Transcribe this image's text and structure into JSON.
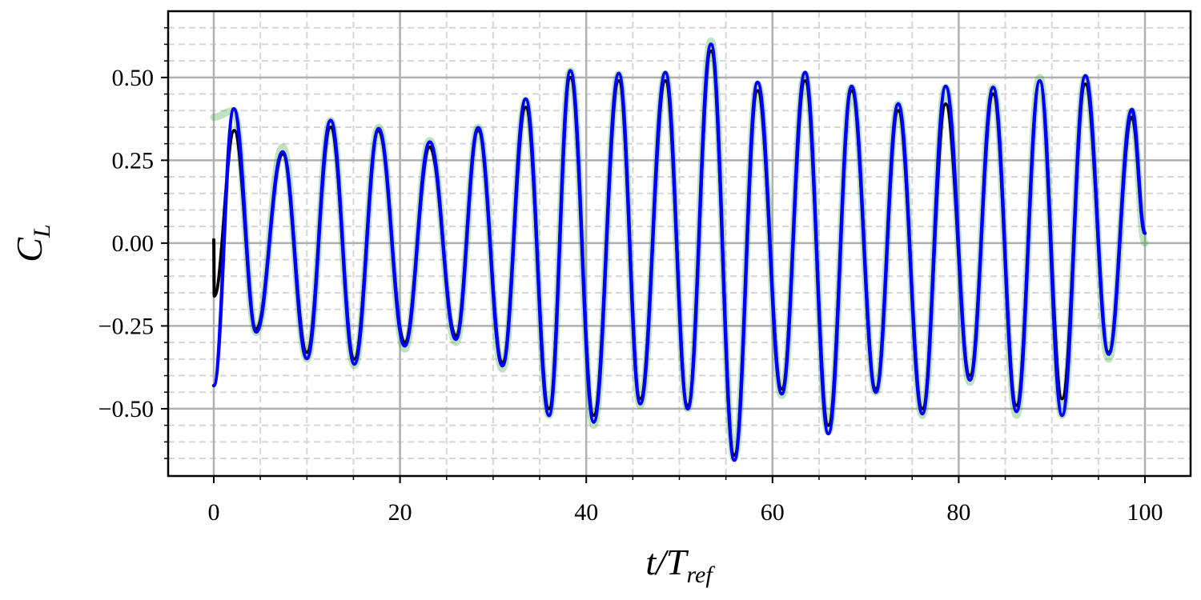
{
  "chart_data": {
    "type": "line",
    "ylabel": [
      "C",
      "L"
    ],
    "xlabel": [
      "t/T",
      "ref"
    ],
    "xlim": [
      -4.9,
      104.9
    ],
    "ylim": [
      -0.703,
      0.7
    ],
    "xticks": [
      0,
      20,
      40,
      60,
      80,
      100
    ],
    "yticks": [
      {
        "value": -0.5,
        "label": "−0.50"
      },
      {
        "value": -0.25,
        "label": "−0.25"
      },
      {
        "value": 0,
        "label": "0.00"
      },
      {
        "value": 0.25,
        "label": "0.25"
      },
      {
        "value": 0.5,
        "label": "0.50"
      }
    ],
    "xminorticks": [
      5,
      10,
      15,
      25,
      30,
      35,
      45,
      50,
      55,
      65,
      70,
      75,
      85,
      90,
      95
    ],
    "yminorticks": [
      -0.65,
      -0.6,
      -0.55,
      -0.45,
      -0.4,
      -0.35,
      -0.3,
      -0.2,
      -0.15,
      -0.1,
      -0.05,
      0.05,
      0.1,
      0.15,
      0.2,
      0.3,
      0.35,
      0.4,
      0.45,
      0.55,
      0.6,
      0.65
    ],
    "grid": true,
    "series": [
      {
        "color": "#2ca02c",
        "x": [
          0,
          2.15,
          4.56,
          7.4,
          10.0,
          12.55,
          15.1,
          17.7,
          20.5,
          23.2,
          26.0,
          28.4,
          31.0,
          33.5,
          36.0,
          38.3,
          40.8,
          43.5,
          45.8,
          48.5,
          50.9,
          53.4,
          55.9,
          58.4,
          61.0,
          63.5,
          66.0,
          68.5,
          71.1,
          73.5,
          76.1,
          78.6,
          81.2,
          83.7,
          86.2,
          88.7,
          91.1,
          93.6,
          96.1,
          98.6,
          100
        ],
        "values": [
          0.38,
          0.4,
          -0.27,
          0.29,
          -0.35,
          0.37,
          -0.37,
          0.35,
          -0.32,
          0.31,
          -0.3,
          0.35,
          -0.38,
          0.43,
          -0.52,
          0.52,
          -0.55,
          0.51,
          -0.49,
          0.51,
          -0.5,
          0.61,
          -0.65,
          0.48,
          -0.46,
          0.51,
          -0.57,
          0.47,
          -0.45,
          0.42,
          -0.52,
          0.47,
          -0.42,
          0.47,
          -0.52,
          0.5,
          -0.52,
          0.5,
          -0.35,
          0.4,
          0.0
        ]
      },
      {
        "color": "#000000",
        "x": [
          0,
          0.05,
          2.2,
          4.56,
          7.4,
          10.0,
          12.55,
          15.1,
          17.7,
          20.5,
          23.2,
          26.0,
          28.4,
          31.0,
          33.5,
          36.0,
          38.3,
          40.8,
          43.5,
          45.8,
          48.5,
          50.9,
          53.4,
          55.9,
          58.4,
          61.0,
          63.5,
          66.0,
          68.5,
          71.1,
          73.5,
          76.1,
          78.6,
          81.2,
          83.7,
          86.2,
          88.7,
          91.1,
          93.6,
          96.1,
          98.6,
          100
        ],
        "values": [
          0.01,
          -0.16,
          0.34,
          -0.26,
          0.27,
          -0.33,
          0.35,
          -0.35,
          0.34,
          -0.3,
          0.29,
          -0.28,
          0.34,
          -0.36,
          0.41,
          -0.5,
          0.5,
          -0.52,
          0.49,
          -0.47,
          0.49,
          -0.49,
          0.58,
          -0.64,
          0.46,
          -0.44,
          0.49,
          -0.55,
          0.46,
          -0.44,
          0.4,
          -0.5,
          0.42,
          -0.4,
          0.45,
          -0.49,
          0.49,
          -0.47,
          0.48,
          -0.33,
          0.38,
          0.03
        ]
      },
      {
        "color": "#0000ff",
        "x": [
          0,
          2.15,
          4.56,
          7.4,
          10.0,
          12.55,
          15.1,
          17.7,
          20.5,
          23.2,
          26.0,
          28.4,
          31.0,
          33.5,
          36.0,
          38.3,
          40.8,
          43.5,
          45.8,
          48.5,
          50.9,
          53.4,
          55.9,
          58.4,
          61.0,
          63.5,
          66.0,
          68.5,
          71.1,
          73.5,
          76.1,
          78.6,
          81.2,
          83.7,
          86.2,
          88.7,
          91.1,
          93.6,
          96.1,
          98.6,
          100
        ],
        "values": [
          -0.43,
          0.405,
          -0.268,
          0.275,
          -0.348,
          0.37,
          -0.365,
          0.345,
          -0.31,
          0.305,
          -0.29,
          0.348,
          -0.37,
          0.435,
          -0.52,
          0.52,
          -0.54,
          0.512,
          -0.485,
          0.515,
          -0.5,
          0.6,
          -0.655,
          0.485,
          -0.455,
          0.515,
          -0.575,
          0.473,
          -0.45,
          0.42,
          -0.515,
          0.473,
          -0.413,
          0.47,
          -0.508,
          0.49,
          -0.52,
          0.505,
          -0.335,
          0.403,
          0.03
        ]
      }
    ]
  }
}
